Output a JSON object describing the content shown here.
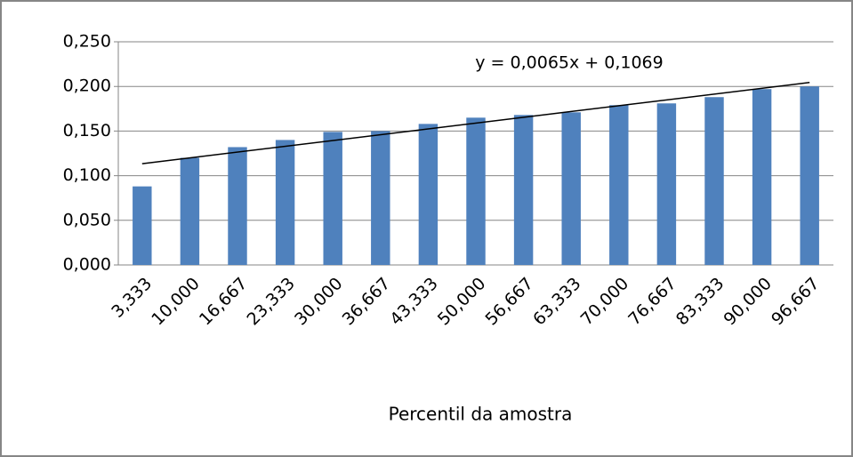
{
  "chart_data": {
    "type": "bar",
    "x_label": "Percentil da amostra",
    "categories": [
      "3,333",
      "10,000",
      "16,667",
      "23,333",
      "30,000",
      "36,667",
      "43,333",
      "50,000",
      "56,667",
      "63,333",
      "70,000",
      "76,667",
      "83,333",
      "90,000",
      "96,667"
    ],
    "values": [
      0.088,
      0.12,
      0.132,
      0.14,
      0.149,
      0.15,
      0.158,
      0.165,
      0.168,
      0.171,
      0.179,
      0.181,
      0.188,
      0.197,
      0.2
    ],
    "color": "#4f81bd",
    "ylim": [
      0,
      0.25
    ],
    "yticks": [
      {
        "value": 0,
        "label": "0,000"
      },
      {
        "value": 0.05,
        "label": "0,050"
      },
      {
        "value": 0.1,
        "label": "0,100"
      },
      {
        "value": 0.15,
        "label": "0,150"
      },
      {
        "value": 0.2,
        "label": "0,200"
      },
      {
        "value": 0.25,
        "label": "0,250"
      }
    ],
    "grid": true,
    "trendline": {
      "slope": 0.0065,
      "intercept": 0.1069,
      "label": "y = 0,0065x + 0,1069",
      "color": "#000000"
    }
  }
}
